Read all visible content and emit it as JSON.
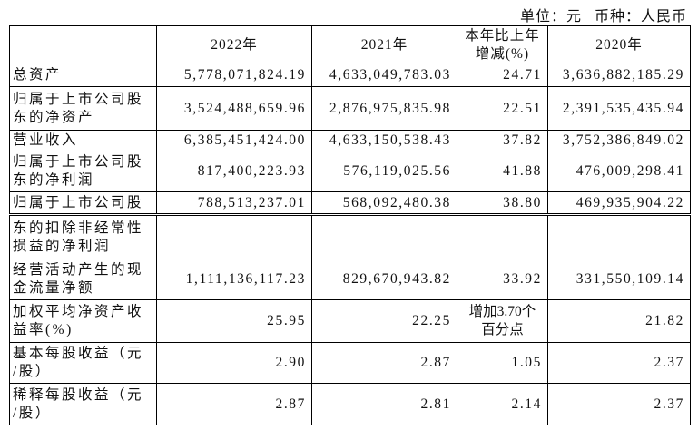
{
  "header": {
    "unit": "单位：元",
    "currency": "币种：人民币"
  },
  "table": {
    "columns": [
      "2022年",
      "2021年",
      [
        "本年比上年",
        "增减(%)"
      ],
      "2020年"
    ],
    "rows": [
      [
        "总资产",
        "5,778,071,824.19",
        "4,633,049,783.03",
        "24.71",
        "3,636,882,185.29"
      ],
      [
        [
          "归属于上市公司股",
          "东的净资产"
        ],
        "3,524,488,659.96",
        "2,876,975,835.98",
        "22.51",
        "2,391,535,435.94"
      ],
      [
        "营业收入",
        "6,385,451,424.00",
        "4,633,150,538.43",
        "37.82",
        "3,752,386,849.02"
      ],
      [
        [
          "归属于上市公司股",
          "东的净利润"
        ],
        "817,400,223.93",
        "576,119,025.56",
        "41.88",
        "476,009,298.41"
      ],
      [
        "归属于上市公司股",
        "788,513,237.01",
        "568,092,480.38",
        "38.80",
        "469,935,904.22"
      ]
    ]
  },
  "table2": {
    "rows": [
      [
        [
          "东的扣除非经常性",
          "损益的净利润"
        ]
      ],
      [
        [
          "经营活动产生的现",
          "金流量净额"
        ],
        "1,111,136,117.23",
        "829,670,943.82",
        "33.92",
        "331,550,109.14"
      ],
      [
        [
          "加权平均净资产收",
          "益率(%)"
        ],
        "25.95",
        "22.25",
        [
          "增加3.70个",
          "百分点"
        ],
        "21.82"
      ],
      [
        [
          "基本每股收益（元",
          "/股）"
        ],
        "2.90",
        "2.87",
        "1.05",
        "2.37"
      ],
      [
        [
          "稀释每股收益（元",
          "/股）"
        ],
        "2.87",
        "2.81",
        "2.14",
        "2.37"
      ]
    ]
  }
}
